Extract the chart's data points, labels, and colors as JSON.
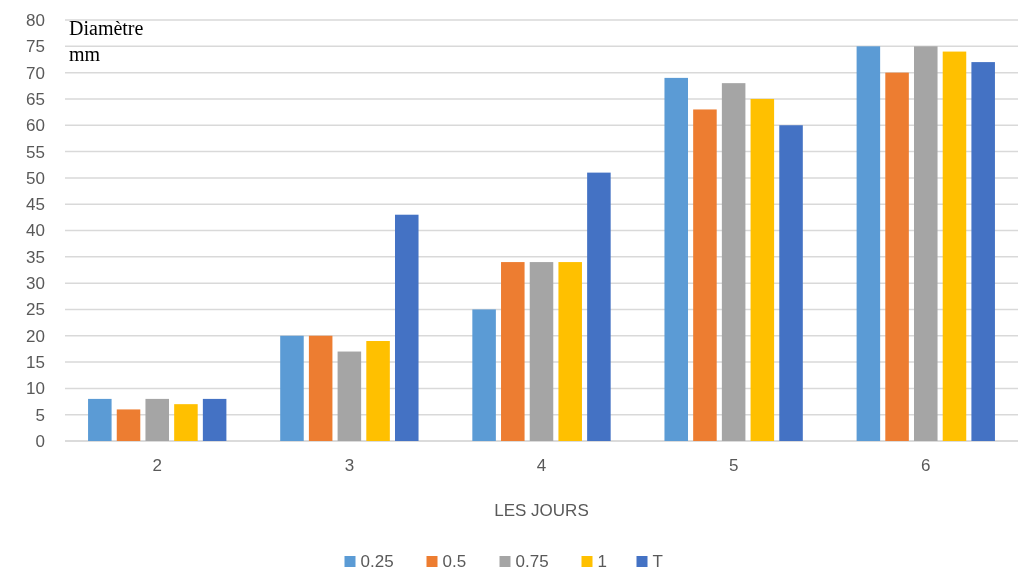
{
  "chart_data": {
    "type": "bar",
    "xlabel": "LES JOURS",
    "ylabel": "Diamètre mm",
    "categories": [
      "2",
      "3",
      "4",
      "5",
      "6"
    ],
    "series": [
      {
        "name": "0.25",
        "color": "#5b9bd5",
        "values": [
          8,
          20,
          25,
          69,
          75
        ]
      },
      {
        "name": "0.5",
        "color": "#ed7d31",
        "values": [
          6,
          20,
          34,
          63,
          70
        ]
      },
      {
        "name": "0.75",
        "color": "#a5a5a5",
        "values": [
          8,
          17,
          34,
          68,
          75
        ]
      },
      {
        "name": "1",
        "color": "#ffc000",
        "values": [
          7,
          19,
          34,
          65,
          74
        ]
      },
      {
        "name": "T",
        "color": "#4472c4",
        "values": [
          8,
          43,
          51,
          60,
          72
        ]
      }
    ],
    "ylim": [
      0,
      80
    ],
    "yticks": [
      0,
      5,
      10,
      15,
      20,
      25,
      30,
      35,
      40,
      45,
      50,
      55,
      60,
      65,
      70,
      75,
      80
    ],
    "grid": "y",
    "legend": "bottom"
  }
}
